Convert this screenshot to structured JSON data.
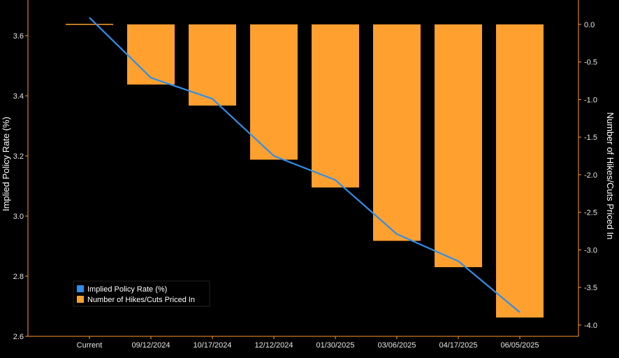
{
  "chart_data": {
    "type": "bar",
    "categories": [
      "Current",
      "09/12/2024",
      "10/17/2024",
      "12/12/2024",
      "01/30/2025",
      "03/06/2025",
      "04/17/2025",
      "06/05/2025"
    ],
    "series": [
      {
        "name": "Implied Policy Rate (%)",
        "type": "line",
        "axis": "left",
        "color": "#2f8fea",
        "values": [
          3.66,
          3.46,
          3.39,
          3.2,
          3.12,
          2.94,
          2.85,
          2.68
        ]
      },
      {
        "name": "Number of Hikes/Cuts Priced In",
        "type": "bar",
        "axis": "right",
        "color": "#ffa02f",
        "values": [
          0.0,
          -0.8,
          -1.08,
          -1.8,
          -2.17,
          -2.88,
          -3.23,
          -3.9
        ]
      }
    ],
    "ylabel": "Implied Policy Rate (%)",
    "ylabel_right": "Number of Hikes/Cuts Priced In",
    "ylim": [
      2.6,
      3.7
    ],
    "ylim_right": [
      -4.15,
      0.25
    ],
    "yticks": [
      "2.6",
      "2.8",
      "3.0",
      "3.2",
      "3.4",
      "3.6"
    ],
    "yticks_right": [
      "0.0",
      "-0.5",
      "-1.0",
      "-1.5",
      "-2.0",
      "-2.5",
      "-3.0",
      "-3.5",
      "-4.0"
    ],
    "legend_position": "bottom-left",
    "grid": false,
    "background": "#000000",
    "axis_color": "#ff9a2e"
  }
}
